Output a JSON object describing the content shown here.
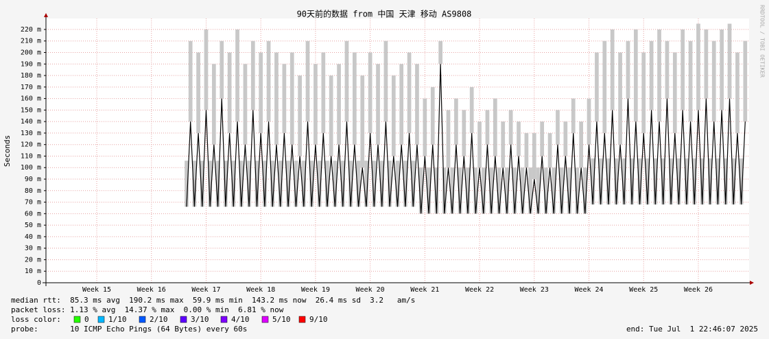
{
  "chart_data": {
    "type": "smoke",
    "title": "90天前的数据 from 中国 天津 移动 AS9808",
    "y_label": "Seconds",
    "watermark": "RRDTOOL / TOBI OETIKER",
    "ylim": [
      0,
      0.2295
    ],
    "yticks": [
      0,
      {
        "value": 0.01,
        "label": "10 m"
      },
      {
        "value": 0.02,
        "label": "20 m"
      },
      {
        "value": 0.03,
        "label": "30 m"
      },
      {
        "value": 0.04,
        "label": "40 m"
      },
      {
        "value": 0.05,
        "label": "50 m"
      },
      {
        "value": 0.06,
        "label": "60 m"
      },
      {
        "value": 0.07,
        "label": "70 m"
      },
      {
        "value": 0.08,
        "label": "80 m"
      },
      {
        "value": 0.09,
        "label": "90 m"
      },
      {
        "value": 0.1,
        "label": "100 m"
      },
      {
        "value": 0.11,
        "label": "110 m"
      },
      {
        "value": 0.12,
        "label": "120 m"
      },
      {
        "value": 0.13,
        "label": "130 m"
      },
      {
        "value": 0.14,
        "label": "140 m"
      },
      {
        "value": 0.15,
        "label": "150 m"
      },
      {
        "value": 0.16,
        "label": "160 m"
      },
      {
        "value": 0.17,
        "label": "170 m"
      },
      {
        "value": 0.18,
        "label": "180 m"
      },
      {
        "value": 0.19,
        "label": "190 m"
      },
      {
        "value": 0.2,
        "label": "200 m"
      },
      {
        "value": 0.21,
        "label": "210 m"
      },
      {
        "value": 0.22,
        "label": "220 m"
      }
    ],
    "xlim": [
      0,
      90
    ],
    "xticks": [
      {
        "value": 6.5,
        "label": "Week 15"
      },
      {
        "value": 13.5,
        "label": "Week 16"
      },
      {
        "value": 20.5,
        "label": "Week 17"
      },
      {
        "value": 27.5,
        "label": "Week 18"
      },
      {
        "value": 34.5,
        "label": "Week 19"
      },
      {
        "value": 41.5,
        "label": "Week 20"
      },
      {
        "value": 48.5,
        "label": "Week 21"
      },
      {
        "value": 55.5,
        "label": "Week 22"
      },
      {
        "value": 62.5,
        "label": "Week 23"
      },
      {
        "value": 69.5,
        "label": "Week 24"
      },
      {
        "value": 76.5,
        "label": "Week 25"
      },
      {
        "value": 83.5,
        "label": "Week 26"
      }
    ],
    "grid": true,
    "x": [
      18,
      18.5,
      19,
      19.5,
      20,
      20.5,
      21,
      21.5,
      22,
      22.5,
      23,
      23.5,
      24,
      24.5,
      25,
      25.5,
      26,
      26.5,
      27,
      27.5,
      28,
      28.5,
      29,
      29.5,
      30,
      30.5,
      31,
      31.5,
      32,
      32.5,
      33,
      33.5,
      34,
      34.5,
      35,
      35.5,
      36,
      36.5,
      37,
      37.5,
      38,
      38.5,
      39,
      39.5,
      40,
      40.5,
      41,
      41.5,
      42,
      42.5,
      43,
      43.5,
      44,
      44.5,
      45,
      45.5,
      46,
      46.5,
      47,
      47.5,
      48,
      48.5,
      49,
      49.5,
      50,
      50.5,
      51,
      51.5,
      52,
      52.5,
      53,
      53.5,
      54,
      54.5,
      55,
      55.5,
      56,
      56.5,
      57,
      57.5,
      58,
      58.5,
      59,
      59.5,
      60,
      60.5,
      61,
      61.5,
      62,
      62.5,
      63,
      63.5,
      64,
      64.5,
      65,
      65.5,
      66,
      66.5,
      67,
      67.5,
      68,
      68.5,
      69,
      69.5,
      70,
      70.5,
      71,
      71.5,
      72,
      72.5,
      73,
      73.5,
      74,
      74.5,
      75,
      75.5,
      76,
      76.5,
      77,
      77.5,
      78,
      78.5,
      79,
      79.5,
      80,
      80.5,
      81,
      81.5,
      82,
      82.5,
      83,
      83.5,
      84,
      84.5,
      85,
      85.5,
      86,
      86.5,
      87,
      87.5,
      88,
      88.5,
      89,
      89.5
    ],
    "series": [
      {
        "color": "#000000",
        "values": [
          0.066,
          0.14,
          0.066,
          0.13,
          0.066,
          0.15,
          0.066,
          0.12,
          0.066,
          0.16,
          0.066,
          0.13,
          0.066,
          0.14,
          0.066,
          0.12,
          0.066,
          0.15,
          0.066,
          0.13,
          0.066,
          0.14,
          0.066,
          0.12,
          0.066,
          0.13,
          0.066,
          0.12,
          0.066,
          0.11,
          0.066,
          0.14,
          0.066,
          0.12,
          0.066,
          0.13,
          0.066,
          0.11,
          0.066,
          0.12,
          0.066,
          0.14,
          0.066,
          0.12,
          0.066,
          0.1,
          0.066,
          0.13,
          0.066,
          0.12,
          0.066,
          0.14,
          0.066,
          0.11,
          0.066,
          0.12,
          0.066,
          0.13,
          0.066,
          0.12,
          0.06,
          0.11,
          0.06,
          0.12,
          0.06,
          0.19,
          0.06,
          0.1,
          0.06,
          0.12,
          0.06,
          0.11,
          0.06,
          0.13,
          0.06,
          0.1,
          0.06,
          0.12,
          0.06,
          0.11,
          0.06,
          0.1,
          0.06,
          0.12,
          0.06,
          0.11,
          0.06,
          0.1,
          0.06,
          0.09,
          0.06,
          0.11,
          0.06,
          0.1,
          0.06,
          0.12,
          0.06,
          0.11,
          0.06,
          0.13,
          0.06,
          0.1,
          0.06,
          0.12,
          0.068,
          0.14,
          0.068,
          0.13,
          0.068,
          0.15,
          0.068,
          0.12,
          0.068,
          0.16,
          0.068,
          0.14,
          0.068,
          0.13,
          0.068,
          0.15,
          0.068,
          0.14,
          0.068,
          0.16,
          0.068,
          0.13,
          0.068,
          0.15,
          0.068,
          0.14,
          0.068,
          0.15,
          0.068,
          0.16,
          0.068,
          0.14,
          0.068,
          0.15,
          0.068,
          0.16,
          0.068,
          0.13,
          0.068,
          0.14
        ]
      },
      {
        "color": "#c8c8c8",
        "values": [
          0.106,
          0.21,
          0.106,
          0.2,
          0.106,
          0.22,
          0.106,
          0.19,
          0.106,
          0.21,
          0.106,
          0.2,
          0.106,
          0.22,
          0.106,
          0.19,
          0.106,
          0.21,
          0.106,
          0.2,
          0.106,
          0.21,
          0.106,
          0.2,
          0.106,
          0.19,
          0.106,
          0.2,
          0.106,
          0.18,
          0.106,
          0.21,
          0.106,
          0.19,
          0.106,
          0.2,
          0.106,
          0.18,
          0.106,
          0.19,
          0.106,
          0.21,
          0.106,
          0.2,
          0.106,
          0.18,
          0.106,
          0.2,
          0.106,
          0.19,
          0.106,
          0.21,
          0.106,
          0.18,
          0.106,
          0.19,
          0.106,
          0.2,
          0.106,
          0.19,
          0.1,
          0.16,
          0.1,
          0.17,
          0.1,
          0.21,
          0.1,
          0.15,
          0.1,
          0.16,
          0.1,
          0.15,
          0.1,
          0.17,
          0.1,
          0.14,
          0.1,
          0.15,
          0.1,
          0.16,
          0.1,
          0.14,
          0.1,
          0.15,
          0.1,
          0.14,
          0.1,
          0.13,
          0.1,
          0.13,
          0.1,
          0.14,
          0.1,
          0.13,
          0.1,
          0.15,
          0.1,
          0.14,
          0.1,
          0.16,
          0.1,
          0.14,
          0.1,
          0.16,
          0.108,
          0.2,
          0.108,
          0.21,
          0.108,
          0.22,
          0.108,
          0.2,
          0.108,
          0.21,
          0.108,
          0.22,
          0.108,
          0.2,
          0.108,
          0.21,
          0.108,
          0.22,
          0.108,
          0.21,
          0.108,
          0.2,
          0.108,
          0.22,
          0.108,
          0.21,
          0.108,
          0.225,
          0.108,
          0.22,
          0.108,
          0.21,
          0.108,
          0.22,
          0.108,
          0.225,
          0.108,
          0.2,
          0.108,
          0.21
        ]
      }
    ],
    "stats": [
      "median rtt:  85.3 ms avg  190.2 ms max  59.9 ms min  143.2 ms now  26.4 ms sd  3.2   am/s",
      "packet loss: 1.13 % avg  14.37 % max  0.00 % min  6.81 % now",
      "loss color:",
      "probe:       10 ICMP Echo Pings (64 Bytes) every 60s"
    ],
    "end": "end: Tue Jul  1 22:46:07 2025",
    "loss_legend": [
      {
        "label": "0",
        "color": "#26ff00"
      },
      {
        "label": "1/10",
        "color": "#00b8ff"
      },
      {
        "label": "2/10",
        "color": "#0059ff"
      },
      {
        "label": "3/10",
        "color": "#5e00ff"
      },
      {
        "label": "4/10",
        "color": "#7e00ff"
      },
      {
        "label": "5/10",
        "color": "#dd00ff"
      },
      {
        "label": "9/10",
        "color": "#ff0000"
      }
    ]
  }
}
